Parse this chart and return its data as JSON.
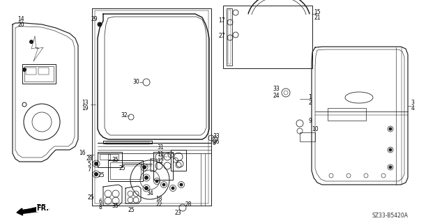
{
  "bg_color": "#ffffff",
  "diagram_code": "SZ33-B5420A",
  "line_color": "#1a1a1a",
  "text_color": "#000000",
  "lw": 0.7,
  "figsize": [
    6.34,
    3.2
  ],
  "dpi": 100
}
